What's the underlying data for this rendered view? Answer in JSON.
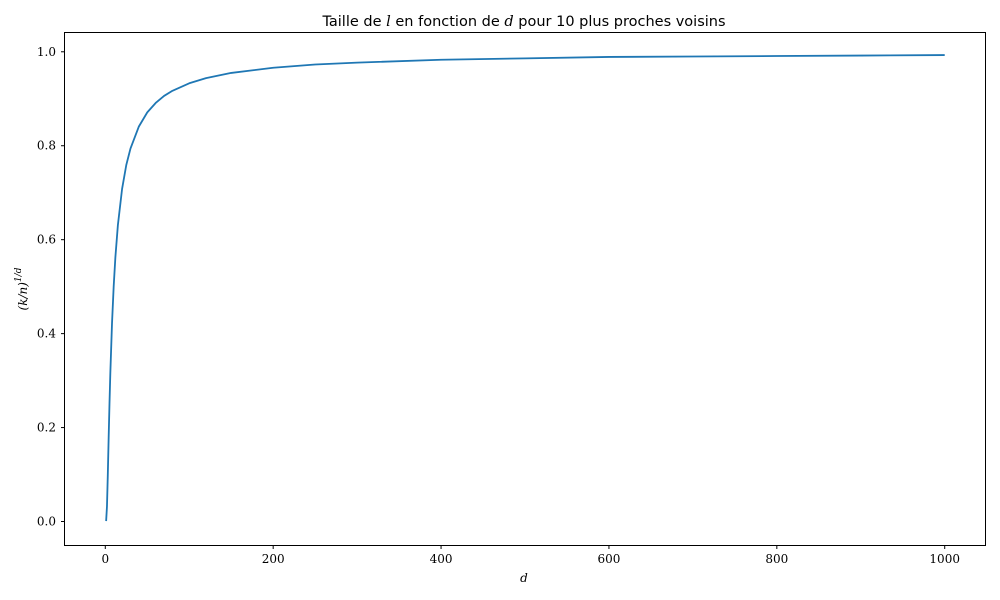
{
  "chart_data": {
    "type": "line",
    "title": "Taille de l en fonction de d pour 10 plus proches voisins",
    "title_parts": {
      "prefix": "Taille de ",
      "var1": "l",
      "middle": " en fonction de ",
      "var2": "d",
      "suffix": " pour 10 plus proches voisins"
    },
    "xlabel": "d",
    "ylabel": "(k/n)^{1/d}",
    "ylabel_parts": {
      "base": "(k/n)",
      "exponent": "1/d"
    },
    "xlim": [
      -48,
      1048
    ],
    "ylim": [
      -0.05,
      1.04
    ],
    "xticks": [
      0,
      200,
      400,
      600,
      800,
      1000
    ],
    "xtick_labels": [
      "0",
      "200",
      "400",
      "600",
      "800",
      "1000"
    ],
    "yticks": [
      0.0,
      0.2,
      0.4,
      0.6,
      0.8,
      1.0
    ],
    "ytick_labels": [
      "0.0",
      "0.2",
      "0.4",
      "0.6",
      "0.8",
      "1.0"
    ],
    "grid": false,
    "series": [
      {
        "color": "#1f77b4",
        "x": [
          1,
          2,
          3,
          4,
          5,
          6,
          8,
          10,
          12,
          15,
          20,
          25,
          30,
          40,
          50,
          60,
          70,
          80,
          100,
          120,
          150,
          200,
          250,
          300,
          400,
          500,
          600,
          700,
          800,
          900,
          1000
        ],
        "y": [
          0.001,
          0.032,
          0.1,
          0.178,
          0.251,
          0.316,
          0.422,
          0.501,
          0.562,
          0.631,
          0.708,
          0.759,
          0.794,
          0.841,
          0.871,
          0.891,
          0.906,
          0.917,
          0.933,
          0.944,
          0.955,
          0.966,
          0.973,
          0.977,
          0.983,
          0.986,
          0.989,
          0.99,
          0.991,
          0.992,
          0.993
        ]
      }
    ]
  }
}
